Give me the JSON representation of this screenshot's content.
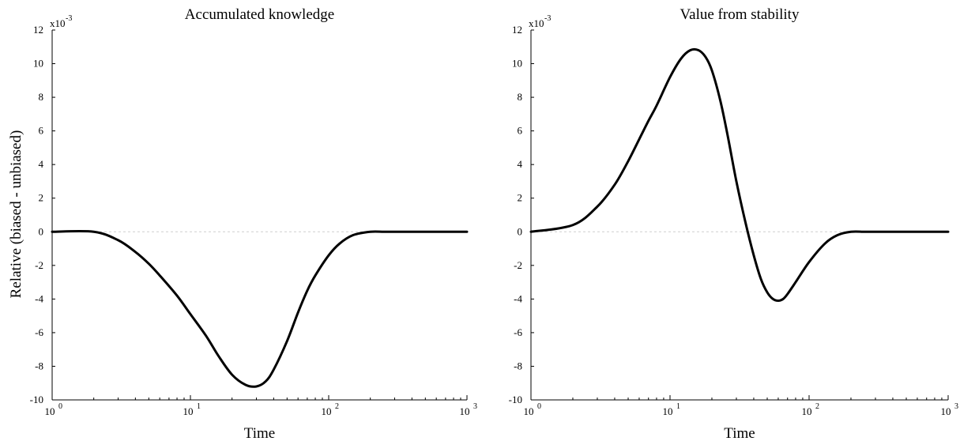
{
  "figure": {
    "ylabel": "Relative (biased - unbiased)"
  },
  "chart_data": [
    {
      "type": "line",
      "title": "Accumulated knowledge",
      "xlabel": "Time",
      "ylabel": "Relative (biased - unbiased)",
      "xscale": "log",
      "xlim": [
        1,
        1000
      ],
      "ylim": [
        -0.01,
        0.012
      ],
      "y_exponent_label": "x10",
      "y_exponent_value": "-3",
      "yticks": [
        -10,
        -8,
        -6,
        -4,
        -2,
        0,
        2,
        4,
        6,
        8,
        10,
        12
      ],
      "ytick_labels": [
        "-10",
        "-8",
        "-6",
        "-4",
        "-2",
        "0",
        "2",
        "4",
        "6",
        "8",
        "10",
        "12"
      ],
      "xticks": [
        1,
        10,
        100,
        1000
      ],
      "xtick_bases": [
        "10",
        "10",
        "10",
        "10"
      ],
      "xtick_exponents": [
        "0",
        "1",
        "2",
        "3"
      ],
      "zero_line": true,
      "grid": false,
      "series": [
        {
          "x": [
            1,
            2,
            3,
            4,
            5,
            6,
            8,
            10,
            13,
            16,
            20,
            25,
            30,
            35,
            40,
            50,
            60,
            70,
            80,
            100,
            120,
            150,
            200,
            250,
            300,
            500,
            1000
          ],
          "y": [
            0,
            0,
            -0.0005,
            -0.0012,
            -0.0019,
            -0.0026,
            -0.0038,
            -0.0049,
            -0.0062,
            -0.0074,
            -0.0085,
            -0.0091,
            -0.0092,
            -0.0089,
            -0.0082,
            -0.0065,
            -0.0048,
            -0.0035,
            -0.0026,
            -0.0014,
            -0.0007,
            -0.0002,
            0,
            0,
            0,
            0,
            0
          ]
        }
      ]
    },
    {
      "type": "line",
      "title": "Value from stability",
      "xlabel": "Time",
      "xscale": "log",
      "xlim": [
        1,
        1000
      ],
      "ylim": [
        -0.01,
        0.012
      ],
      "y_exponent_label": "x10",
      "y_exponent_value": "-3",
      "yticks": [
        -10,
        -8,
        -6,
        -4,
        -2,
        0,
        2,
        4,
        6,
        8,
        10,
        12
      ],
      "ytick_labels": [
        "-10",
        "-8",
        "-6",
        "-4",
        "-2",
        "0",
        "2",
        "4",
        "6",
        "8",
        "10",
        "12"
      ],
      "xticks": [
        1,
        10,
        100,
        1000
      ],
      "xtick_bases": [
        "10",
        "10",
        "10",
        "10"
      ],
      "xtick_exponents": [
        "0",
        "1",
        "2",
        "3"
      ],
      "zero_line": true,
      "grid": false,
      "series": [
        {
          "x": [
            1,
            2,
            3,
            4,
            5,
            6,
            7,
            8,
            10,
            12,
            14,
            16,
            18,
            20,
            23,
            26,
            30,
            35,
            40,
            45,
            50,
            55,
            60,
            65,
            70,
            80,
            100,
            130,
            160,
            200,
            250,
            300,
            500,
            1000
          ],
          "y": [
            0,
            0.0004,
            0.0015,
            0.0028,
            0.0042,
            0.0055,
            0.0066,
            0.0075,
            0.0092,
            0.0103,
            0.0108,
            0.0108,
            0.0104,
            0.0096,
            0.0078,
            0.0057,
            0.003,
            0.0005,
            -0.0014,
            -0.0028,
            -0.0036,
            -0.004,
            -0.0041,
            -0.004,
            -0.0037,
            -0.003,
            -0.0018,
            -0.0007,
            -0.0002,
            0,
            0,
            0,
            0,
            0
          ]
        }
      ]
    }
  ]
}
